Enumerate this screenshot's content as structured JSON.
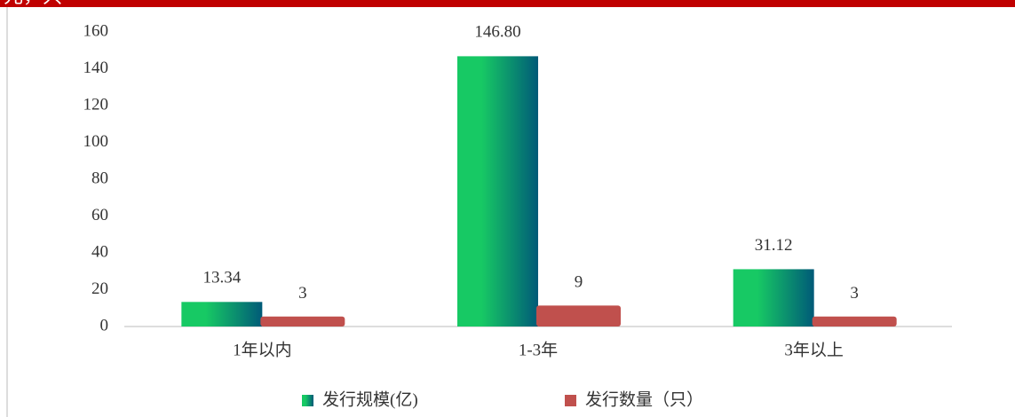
{
  "header": {
    "text": "元，只"
  },
  "chart_data": {
    "type": "bar",
    "categories": [
      "1年以内",
      "1-3年",
      "3年以上"
    ],
    "series": [
      {
        "name": "发行规模(亿)",
        "color": "#17c964",
        "color2": "#005a78",
        "values": [
          13.34,
          146.8,
          31.12
        ],
        "value_labels": [
          "13.34",
          "146.80",
          "31.12"
        ]
      },
      {
        "name": "发行数量（只）",
        "color": "#c0504d",
        "values": [
          3,
          9,
          3
        ]
      }
    ],
    "ylim": [
      0,
      160
    ],
    "yticks": [
      0,
      20,
      40,
      60,
      80,
      100,
      120,
      140,
      160
    ],
    "grid": false
  }
}
